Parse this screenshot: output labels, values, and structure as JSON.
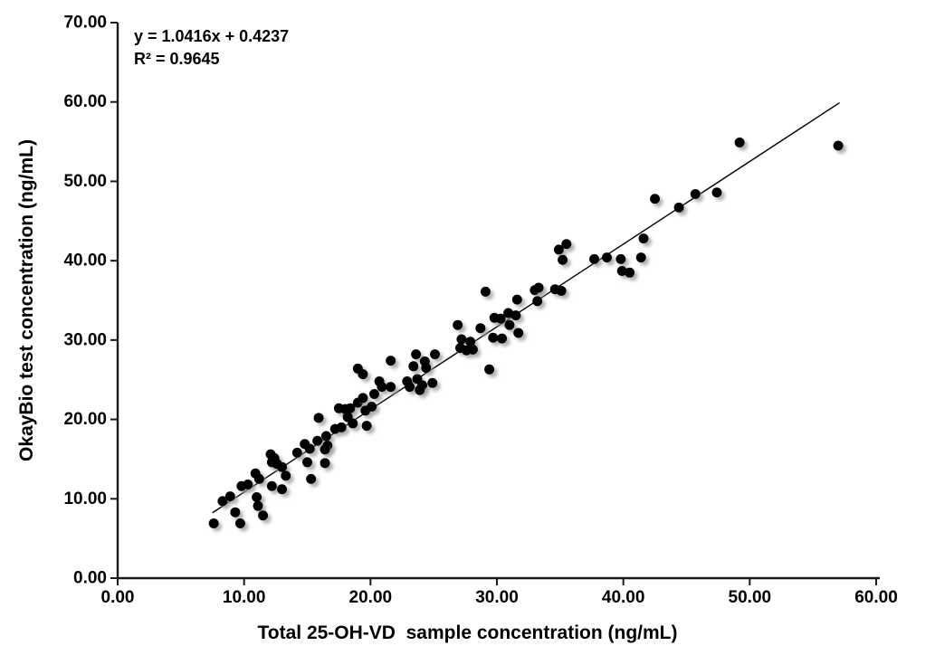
{
  "chart_data": {
    "type": "scatter",
    "title": "",
    "xlabel": "Total 25-OH-VD  sample concentration (ng/mL)",
    "ylabel": "OkayBio test concentration (ng/mL)",
    "annotations": {
      "equation": "y = 1.0416x + 0.4237",
      "r_squared": "R² = 0.9645"
    },
    "xlim": [
      0,
      60
    ],
    "ylim": [
      0,
      70
    ],
    "x_ticks": [
      0,
      10,
      20,
      30,
      40,
      50,
      60
    ],
    "x_tick_labels": [
      "0.00",
      "10.00",
      "20.00",
      "30.00",
      "40.00",
      "50.00",
      "60.00"
    ],
    "y_ticks": [
      0,
      10,
      20,
      30,
      40,
      50,
      60,
      70
    ],
    "y_tick_labels": [
      "0.00",
      "10.00",
      "20.00",
      "30.00",
      "40.00",
      "50.00",
      "60.00",
      "70.00"
    ],
    "grid": false,
    "legend": false,
    "marker_color": "#000000",
    "axis_color": "#1a1a1a",
    "trendline": {
      "slope": 1.0416,
      "intercept": 0.4237,
      "x_start": 7.5,
      "x_end": 57.1
    },
    "points": [
      [
        7.6,
        6.9
      ],
      [
        8.3,
        9.7
      ],
      [
        8.9,
        10.3
      ],
      [
        9.3,
        8.3
      ],
      [
        9.7,
        6.9
      ],
      [
        9.8,
        11.6
      ],
      [
        10.3,
        11.8
      ],
      [
        10.9,
        13.2
      ],
      [
        11.0,
        10.2
      ],
      [
        11.2,
        12.5
      ],
      [
        11.1,
        9.1
      ],
      [
        11.5,
        7.9
      ],
      [
        12.1,
        15.6
      ],
      [
        12.2,
        14.6
      ],
      [
        12.4,
        15.1
      ],
      [
        12.6,
        14.4
      ],
      [
        12.2,
        11.6
      ],
      [
        13.0,
        11.2
      ],
      [
        13.0,
        14.0
      ],
      [
        13.3,
        12.9
      ],
      [
        14.2,
        15.8
      ],
      [
        14.8,
        16.9
      ],
      [
        15.2,
        16.3
      ],
      [
        15.0,
        14.6
      ],
      [
        15.3,
        12.5
      ],
      [
        15.9,
        20.2
      ],
      [
        15.8,
        17.3
      ],
      [
        16.5,
        17.9
      ],
      [
        16.6,
        16.7
      ],
      [
        16.4,
        16.2
      ],
      [
        17.2,
        18.8
      ],
      [
        17.7,
        19.0
      ],
      [
        16.4,
        14.5
      ],
      [
        17.5,
        21.4
      ],
      [
        18.0,
        21.3
      ],
      [
        18.4,
        21.4
      ],
      [
        18.2,
        20.3
      ],
      [
        18.6,
        19.5
      ],
      [
        19.0,
        22.1
      ],
      [
        19.4,
        22.7
      ],
      [
        19.6,
        21.1
      ],
      [
        19.7,
        19.2
      ],
      [
        20.1,
        21.6
      ],
      [
        19.0,
        26.4
      ],
      [
        19.4,
        25.7
      ],
      [
        20.3,
        23.2
      ],
      [
        20.7,
        24.8
      ],
      [
        20.9,
        24.1
      ],
      [
        21.6,
        24.1
      ],
      [
        21.6,
        27.4
      ],
      [
        22.9,
        24.8
      ],
      [
        23.1,
        24.1
      ],
      [
        23.7,
        25.1
      ],
      [
        24.1,
        24.3
      ],
      [
        24.9,
        24.6
      ],
      [
        23.6,
        28.2
      ],
      [
        23.4,
        26.7
      ],
      [
        24.3,
        27.3
      ],
      [
        24.4,
        26.5
      ],
      [
        23.9,
        23.7
      ],
      [
        25.1,
        28.2
      ],
      [
        26.9,
        31.9
      ],
      [
        27.2,
        30.1
      ],
      [
        27.9,
        29.8
      ],
      [
        27.1,
        29.0
      ],
      [
        27.6,
        28.7
      ],
      [
        28.1,
        28.8
      ],
      [
        28.7,
        31.5
      ],
      [
        29.1,
        36.1
      ],
      [
        29.4,
        26.3
      ],
      [
        29.7,
        30.3
      ],
      [
        29.8,
        32.8
      ],
      [
        30.3,
        32.7
      ],
      [
        30.4,
        30.2
      ],
      [
        30.9,
        33.4
      ],
      [
        31.0,
        31.9
      ],
      [
        31.5,
        33.1
      ],
      [
        31.6,
        35.1
      ],
      [
        31.7,
        30.9
      ],
      [
        33.0,
        36.3
      ],
      [
        33.3,
        36.6
      ],
      [
        33.2,
        34.9
      ],
      [
        34.6,
        36.4
      ],
      [
        35.1,
        36.2
      ],
      [
        34.9,
        41.4
      ],
      [
        35.5,
        42.1
      ],
      [
        35.2,
        40.1
      ],
      [
        37.7,
        40.2
      ],
      [
        38.7,
        40.4
      ],
      [
        39.8,
        40.2
      ],
      [
        41.4,
        40.4
      ],
      [
        39.9,
        38.7
      ],
      [
        40.5,
        38.5
      ],
      [
        41.6,
        42.8
      ],
      [
        42.5,
        47.8
      ],
      [
        44.4,
        46.7
      ],
      [
        45.7,
        48.4
      ],
      [
        47.4,
        48.6
      ],
      [
        49.2,
        54.9
      ],
      [
        57.0,
        54.5
      ]
    ]
  }
}
